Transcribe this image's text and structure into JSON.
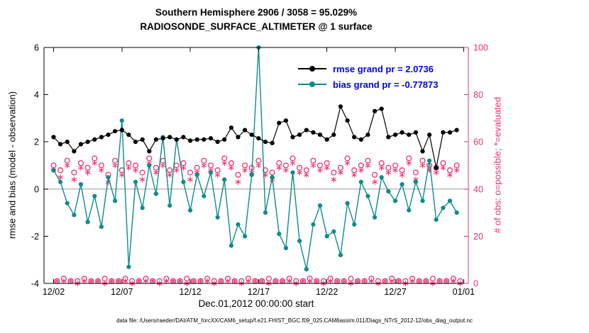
{
  "title": {
    "line1": "Southern Hemisphere 2906 / 3058 = 95.029%",
    "line2": "RADIOSONDE_SURFACE_ALTIMETER @ 1 surface"
  },
  "legend": {
    "rmse_label": "rmse grand pr = 2.0736",
    "bias_label": "bias grand pr = -0.77873"
  },
  "axes": {
    "left_label": "rmse and bias (model - observation)",
    "right_label": "# of obs: o=possible; *=evaluated",
    "x_label": "Dec.01,2012 00:00:00 start",
    "x_ticks": [
      {
        "day": 1,
        "label": "12/02"
      },
      {
        "day": 6,
        "label": "12/07"
      },
      {
        "day": 11,
        "label": "12/12"
      },
      {
        "day": 16,
        "label": "12/17"
      },
      {
        "day": 21,
        "label": "12/22"
      },
      {
        "day": 26,
        "label": "12/27"
      },
      {
        "day": 31,
        "label": "01/01"
      }
    ],
    "left_ticks": [
      {
        "value": 6,
        "label": "6"
      },
      {
        "value": 4,
        "label": "4"
      },
      {
        "value": 2,
        "label": "2"
      },
      {
        "value": 0,
        "label": "0"
      },
      {
        "value": -2,
        "label": "-2"
      },
      {
        "value": -4,
        "label": "-4"
      }
    ],
    "right_ticks": [
      {
        "value": 100,
        "label": "100"
      },
      {
        "value": 80,
        "label": "80"
      },
      {
        "value": 60,
        "label": "60"
      },
      {
        "value": 40,
        "label": "40"
      },
      {
        "value": 20,
        "label": "20"
      },
      {
        "value": 0,
        "label": "0"
      }
    ]
  },
  "footer": {
    "data_file": "data file: /Users/raeder/DAI/ATM_forcXX/CAM6_setup/f.e21.FHIST_BGC.f09_025.CAM6assim.011/Diags_NTrS_2012-12/obs_diag_output.nc"
  },
  "colors": {
    "rmse": "#000000",
    "bias": "#0f8b8b",
    "obs": "#e8336d",
    "legend_text": "#0000ee",
    "zero_line": "#a8a8a8"
  },
  "chart_data": {
    "type": "line",
    "title": "Southern Hemisphere 2906 / 3058 = 95.029% — RADIOSONDE_SURFACE_ALTIMETER @ 1 surface",
    "x_unit": "days since Dec.01,2012 00:00:00",
    "xlim": [
      0.3,
      31.35
    ],
    "left_ylim": [
      -4,
      6
    ],
    "right_ylim": [
      0,
      100
    ],
    "grid": false,
    "legend_position": "top-right-inside",
    "series": [
      {
        "name": "rmse",
        "axis": "left",
        "marker": "filled-circle",
        "x_start": 1.0,
        "x_step": 0.5,
        "values": [
          2.2,
          1.9,
          2.0,
          1.6,
          1.9,
          2.0,
          2.1,
          2.2,
          2.3,
          2.45,
          2.5,
          2.3,
          2.0,
          2.1,
          1.6,
          2.1,
          2.15,
          2.2,
          2.1,
          2.2,
          2.05,
          2.1,
          2.1,
          2.15,
          2.0,
          2.1,
          2.6,
          2.2,
          2.5,
          2.3,
          2.15,
          2.0,
          1.95,
          2.8,
          2.9,
          2.2,
          2.3,
          2.5,
          2.4,
          2.3,
          2.1,
          2.3,
          3.5,
          2.9,
          2.2,
          2.1,
          2.3,
          3.3,
          3.4,
          2.2,
          2.3,
          2.4,
          2.3,
          2.4,
          1.6,
          2.3,
          0.9,
          2.4,
          2.4,
          2.5
        ]
      },
      {
        "name": "bias",
        "axis": "left",
        "marker": "filled-circle",
        "x_start": 1.0,
        "x_step": 0.5,
        "values": [
          0.8,
          0.3,
          -0.6,
          -1.1,
          0.2,
          -1.4,
          -0.3,
          -1.6,
          0.5,
          -0.5,
          2.9,
          -3.3,
          0.3,
          -0.8,
          1.0,
          -0.2,
          2.2,
          -0.7,
          2.1,
          0.3,
          -0.9,
          0.6,
          -0.3,
          0.7,
          -1.2,
          0.4,
          -2.4,
          -1.5,
          -2.0,
          0.6,
          6.0,
          -1.0,
          0.5,
          -1.9,
          -2.5,
          0.7,
          -2.2,
          -3.4,
          -1.5,
          -0.7,
          -2.0,
          -1.8,
          -2.8,
          -0.6,
          -1.5,
          0.3,
          -0.3,
          -1.2,
          0.5,
          -0.1,
          -0.5,
          0.2,
          -0.9,
          0.3,
          -0.5,
          1.2,
          -1.3,
          -0.8,
          -0.5,
          -1.0
        ]
      },
      {
        "name": "possible",
        "axis": "right",
        "marker": "open-circle",
        "x_start": 1.0,
        "x_step": 0.25,
        "values": [
          50,
          1,
          48,
          2,
          52,
          1,
          47,
          1,
          51,
          2,
          49,
          1,
          53,
          1,
          50,
          2,
          46,
          1,
          52,
          1,
          48,
          2,
          51,
          1,
          50,
          1,
          47,
          2,
          53,
          1,
          49,
          1,
          52,
          2,
          48,
          1,
          50,
          1,
          51,
          2,
          47,
          1,
          49,
          1,
          52,
          2,
          50,
          1,
          48,
          1,
          53,
          2,
          51,
          1,
          46,
          1,
          50,
          2,
          49,
          1,
          52,
          1,
          48,
          2,
          47,
          1,
          51,
          1,
          50,
          2,
          53,
          1,
          49,
          1,
          48,
          2,
          52,
          1,
          50,
          1,
          51,
          2,
          47,
          1,
          49,
          1,
          53,
          2,
          48,
          1,
          50,
          1,
          52,
          2,
          46,
          1,
          51,
          1,
          49,
          2,
          50,
          1,
          48,
          1,
          53,
          2,
          47,
          1,
          52,
          1,
          50,
          2,
          49,
          1,
          51,
          1,
          48,
          2,
          50,
          1
        ]
      },
      {
        "name": "evaluated",
        "axis": "right",
        "marker": "asterisk",
        "x_start": 1.0,
        "x_step": 0.25,
        "values": [
          48,
          1,
          45,
          1,
          50,
          1,
          44,
          0,
          49,
          1,
          47,
          1,
          51,
          1,
          48,
          0,
          43,
          1,
          50,
          1,
          46,
          1,
          49,
          0,
          48,
          1,
          44,
          1,
          51,
          1,
          47,
          0,
          50,
          1,
          46,
          1,
          48,
          1,
          49,
          0,
          44,
          1,
          47,
          1,
          50,
          1,
          48,
          0,
          46,
          1,
          51,
          1,
          49,
          1,
          43,
          0,
          48,
          1,
          47,
          1,
          50,
          1,
          46,
          0,
          44,
          1,
          49,
          1,
          48,
          1,
          51,
          0,
          47,
          1,
          46,
          1,
          50,
          1,
          48,
          0,
          49,
          1,
          44,
          1,
          47,
          1,
          51,
          0,
          46,
          1,
          48,
          1,
          50,
          1,
          43,
          0,
          49,
          1,
          47,
          1,
          48,
          1,
          46,
          0,
          51,
          1,
          44,
          1,
          50,
          1,
          48,
          0,
          47,
          1,
          49,
          1,
          46,
          1,
          48,
          0
        ]
      }
    ]
  }
}
